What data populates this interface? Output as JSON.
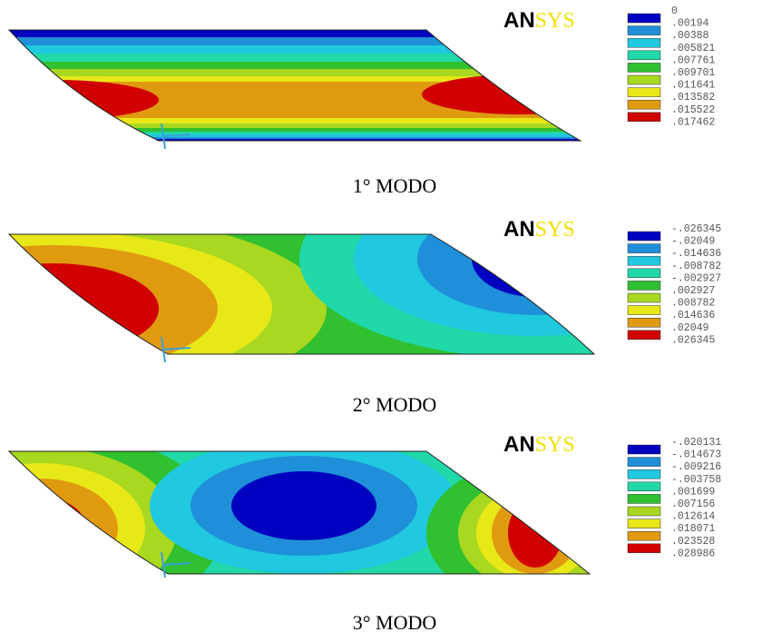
{
  "panels": [
    {
      "logo": "ANSYS",
      "caption": "1° MODO",
      "legend": [
        "0",
        ".00194",
        ".00388",
        ".005821",
        ".007761",
        ".009701",
        ".011641",
        ".013582",
        ".015522",
        ".017462"
      ]
    },
    {
      "logo": "ANSYS",
      "caption": "2° MODO",
      "legend": [
        "-.026345",
        "-.02049",
        "-.014636",
        "-.008782",
        "-.002927",
        ".002927",
        ".008782",
        ".014636",
        ".02049",
        ".026345"
      ]
    },
    {
      "logo": "ANSYS",
      "caption": "3° MODO",
      "legend": [
        "-.020131",
        "-.014673",
        "-.009216",
        "-.003758",
        ".001699",
        ".007156",
        ".012614",
        ".018071",
        ".023528",
        ".028986"
      ]
    }
  ]
}
